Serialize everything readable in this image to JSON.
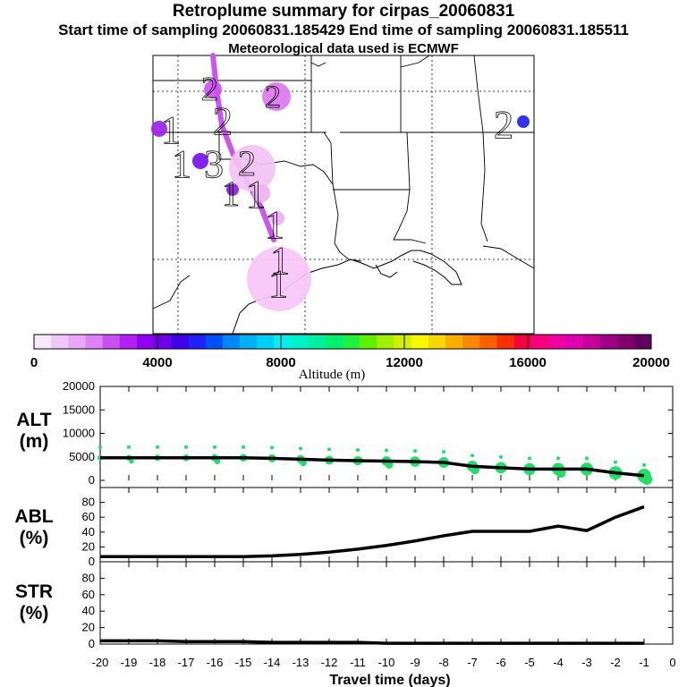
{
  "header": {
    "title": "Retroplume summary for cirpas_20060831",
    "times": "Start time of sampling 20060831.185429     End time of sampling 20060831.185511",
    "met": "Meteorological data used is ECMWF"
  },
  "colorbar": {
    "label": "Altitude (m)",
    "min": 0,
    "max": 20000,
    "ticks": [
      "0",
      "4000",
      "8000",
      "12000",
      "16000",
      "20000"
    ],
    "colors": [
      "#f8e8f8",
      "#f0c8f8",
      "#e8a8f8",
      "#e080f8",
      "#c850f0",
      "#b020f0",
      "#9000f0",
      "#7000e8",
      "#4000e8",
      "#2020f8",
      "#0050f8",
      "#0088f8",
      "#00b0f8",
      "#00d0f8",
      "#00f0f0",
      "#00f0c8",
      "#00f0a0",
      "#00f070",
      "#20f040",
      "#60f000",
      "#a0f000",
      "#d0f000",
      "#f8f800",
      "#f8d800",
      "#f8b000",
      "#f88800",
      "#f86000",
      "#f83000",
      "#f80040",
      "#f80080",
      "#f000a0",
      "#e000b0",
      "#c80098",
      "#a00088",
      "#800070",
      "#600060"
    ]
  },
  "map": {
    "track_color": "#cc55ee",
    "markers": [
      {
        "label": "2",
        "color": "#cc55ee",
        "level": "1"
      },
      {
        "label": "2",
        "color": "#dd77ee",
        "level": "2"
      },
      {
        "label": "2",
        "color": "#2222ee",
        "level": "3"
      },
      {
        "label": "1",
        "color": "#9922ee",
        "level": "4"
      },
      {
        "label": "3",
        "color": "#7711ee",
        "level": "5"
      },
      {
        "label": "2",
        "color": "#f3c3f3",
        "level": "6"
      },
      {
        "label": "1",
        "color": "#8822dd",
        "level": "7"
      },
      {
        "label": "1",
        "color": "#eeb0ee",
        "level": "8"
      },
      {
        "label": "1",
        "color": "#eeb0ee",
        "level": "9"
      },
      {
        "label": "1",
        "color": "#f6c6f6",
        "level": "10"
      }
    ]
  },
  "chart_data": [
    {
      "type": "line",
      "panel": "ALT",
      "ylabel": "ALT (m)",
      "ylim": [
        0,
        20000
      ],
      "yticks": [
        "20000",
        "15000",
        "10000",
        "5000",
        "0"
      ],
      "x": [
        -20,
        -19,
        -18,
        -17,
        -16,
        -15,
        -14,
        -13,
        -12,
        -11,
        -10,
        -9,
        -8,
        -7,
        -6,
        -5,
        -4,
        -3,
        -2,
        -1
      ],
      "values": [
        4800,
        4800,
        4800,
        4800,
        4800,
        4800,
        4700,
        4500,
        4300,
        4200,
        4100,
        4000,
        3800,
        3000,
        2700,
        2400,
        2400,
        2400,
        1600,
        1000
      ],
      "scatter_color": "#22dd66"
    },
    {
      "type": "line",
      "panel": "ABL",
      "ylabel": "ABL (%)",
      "ylim": [
        0,
        100
      ],
      "yticks": [
        "80",
        "60",
        "40",
        "20",
        "0"
      ],
      "x": [
        -20,
        -19,
        -18,
        -17,
        -16,
        -15,
        -14,
        -13,
        -12,
        -11,
        -10,
        -9,
        -8,
        -7,
        -6,
        -5,
        -4,
        -3,
        -2,
        -1
      ],
      "values": [
        7,
        7,
        7,
        7,
        7,
        7,
        8,
        10,
        13,
        17,
        22,
        28,
        35,
        41,
        41,
        41,
        48,
        42,
        60,
        74
      ]
    },
    {
      "type": "line",
      "panel": "STR",
      "ylabel": "STR (%)",
      "ylim": [
        0,
        100
      ],
      "yticks": [
        "80",
        "60",
        "40",
        "20",
        "0"
      ],
      "x": [
        -20,
        -19,
        -18,
        -17,
        -16,
        -15,
        -14,
        -13,
        -12,
        -11,
        -10,
        -9,
        -8,
        -7,
        -6,
        -5,
        -4,
        -3,
        -2,
        -1
      ],
      "values": [
        4,
        4,
        4,
        3,
        3,
        3,
        2,
        2,
        2,
        2,
        1,
        1,
        1,
        1,
        1,
        1,
        1,
        1,
        1,
        1
      ]
    }
  ],
  "xaxis": {
    "label": "Travel time (days)",
    "ticks": [
      "-20",
      "-19",
      "-18",
      "-17",
      "-16",
      "-15",
      "-14",
      "-13",
      "-12",
      "-11",
      "-10",
      "-9",
      "-8",
      "-7",
      "-6",
      "-5",
      "-4",
      "-3",
      "-2",
      "-1",
      "0"
    ]
  }
}
